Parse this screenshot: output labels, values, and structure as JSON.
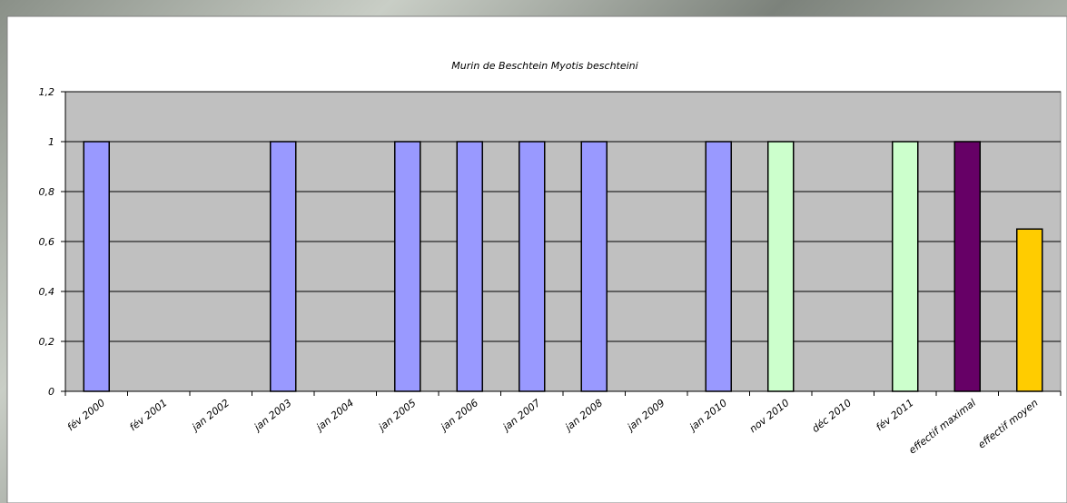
{
  "chart_data": {
    "type": "bar",
    "title": "Murin de Beschtein Myotis beschteini",
    "categories": [
      "fév 2000",
      "fév 2001",
      "jan 2002",
      "jan 2003",
      "jan 2004",
      "jan 2005",
      "jan 2006",
      "jan 2007",
      "jan 2008",
      "jan 2009",
      "jan 2010",
      "nov 2010",
      "déc 2010",
      "fév 2011",
      "effectif maximal",
      "effectif moyen"
    ],
    "values": [
      1,
      0,
      0,
      1,
      0,
      1,
      1,
      1,
      1,
      0,
      1,
      1,
      0,
      1,
      1,
      0.65
    ],
    "colors": [
      "#9999ff",
      "#9999ff",
      "#9999ff",
      "#9999ff",
      "#9999ff",
      "#9999ff",
      "#9999ff",
      "#9999ff",
      "#9999ff",
      "#9999ff",
      "#9999ff",
      "#ccffcc",
      "#ccffcc",
      "#ccffcc",
      "#660066",
      "#ffcc00"
    ],
    "ylim": [
      0,
      1.2
    ],
    "yticks": [
      0,
      {
        "value": 0.2,
        "label": "0,2"
      },
      {
        "value": 0.4,
        "label": "0,4"
      },
      {
        "value": 0.6,
        "label": "0,6"
      },
      {
        "value": 0.8,
        "label": "0,8"
      },
      1,
      {
        "value": 1.2,
        "label": "1,2"
      }
    ],
    "grid": true
  }
}
